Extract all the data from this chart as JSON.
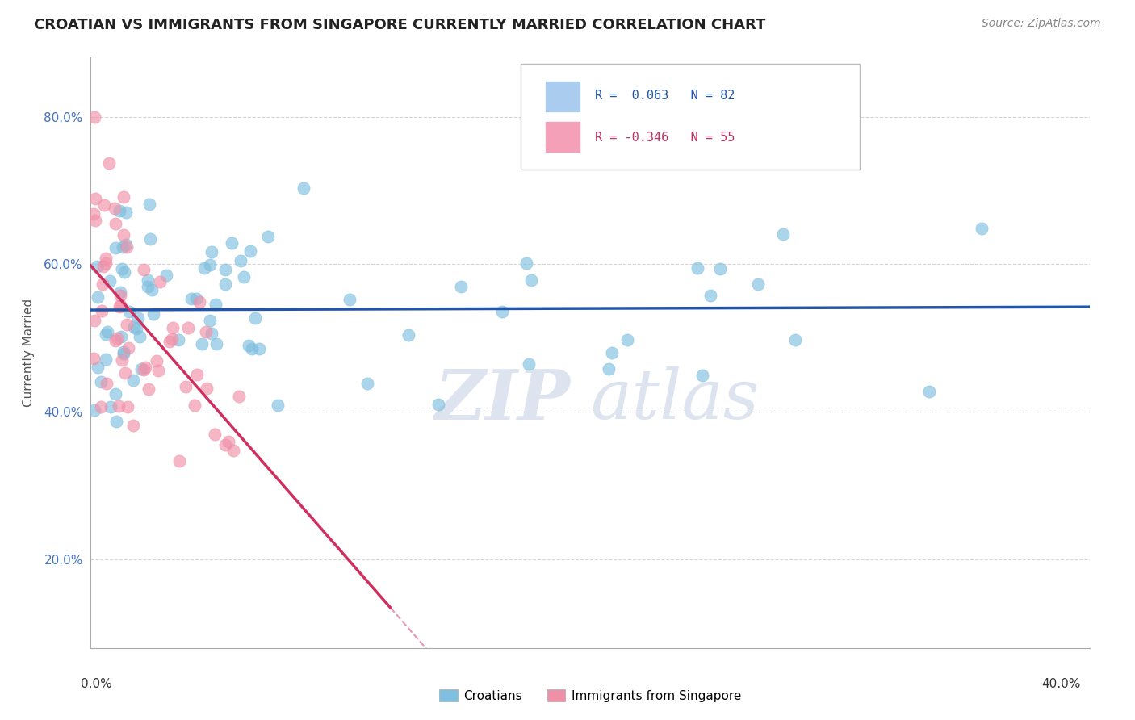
{
  "title": "CROATIAN VS IMMIGRANTS FROM SINGAPORE CURRENTLY MARRIED CORRELATION CHART",
  "source": "Source: ZipAtlas.com",
  "ylabel": "Currently Married",
  "yaxis_ticks": [
    0.2,
    0.4,
    0.6,
    0.8
  ],
  "yaxis_labels": [
    "20.0%",
    "40.0%",
    "60.0%",
    "80.0%"
  ],
  "xlim": [
    0.0,
    0.4
  ],
  "ylim": [
    0.08,
    0.88
  ],
  "croatian_color": "#7fbfdf",
  "singapore_color": "#f090a8",
  "trendline_croatian_color": "#2255aa",
  "trendline_singapore_color": "#d03060",
  "R_croatian": 0.063,
  "N_croatian": 82,
  "R_singapore": -0.346,
  "N_singapore": 55,
  "legend_r1_text": "R =  0.063   N = 82",
  "legend_r2_text": "R = -0.346   N = 55",
  "legend_r1_color": "#2255aa",
  "legend_r2_color": "#c03060",
  "watermark_zip": "ZIP",
  "watermark_atlas": "atlas"
}
